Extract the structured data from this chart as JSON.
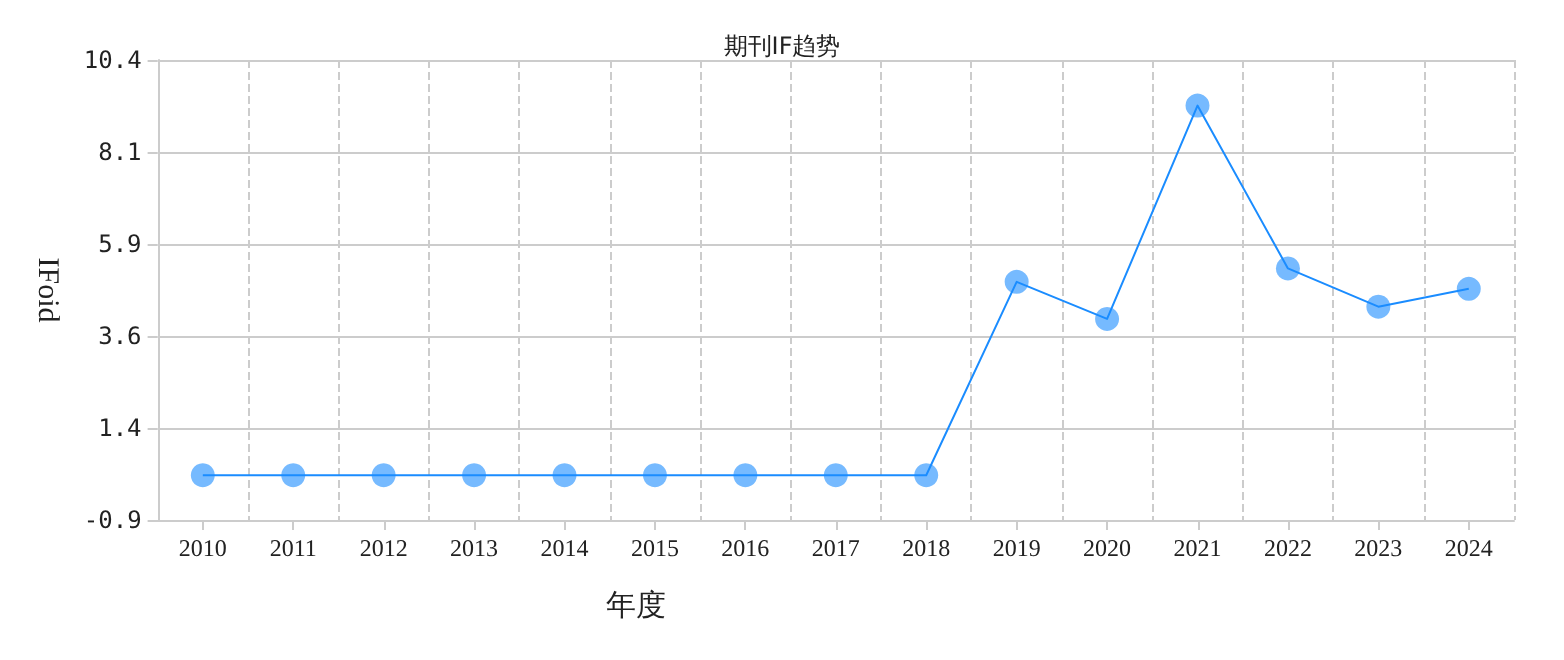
{
  "chart_data": {
    "type": "line",
    "title": "期刊IF趋势",
    "xlabel": "年度",
    "ylabel": "IFoid",
    "categories": [
      "2010",
      "2011",
      "2012",
      "2013",
      "2014",
      "2015",
      "2016",
      "2017",
      "2018",
      "2019",
      "2020",
      "2021",
      "2022",
      "2023",
      "2024"
    ],
    "series": [
      {
        "color": "#1a8cff",
        "values": [
          0.2,
          0.2,
          0.2,
          0.2,
          0.2,
          0.2,
          0.2,
          0.2,
          0.2,
          4.95,
          4.04,
          9.28,
          5.28,
          4.34,
          4.78
        ]
      }
    ],
    "ylim": [
      -0.9,
      10.4
    ],
    "yticks": [
      {
        "value": -0.9,
        "label": "-0.9"
      },
      {
        "value": 1.36,
        "label": "1.4"
      },
      {
        "value": 3.62,
        "label": "3.6"
      },
      {
        "value": 5.88,
        "label": "5.9"
      },
      {
        "value": 8.14,
        "label": "8.1"
      },
      {
        "value": 10.4,
        "label": "10.4"
      }
    ],
    "grid": true,
    "marker": "circle",
    "line_style": "solid"
  }
}
